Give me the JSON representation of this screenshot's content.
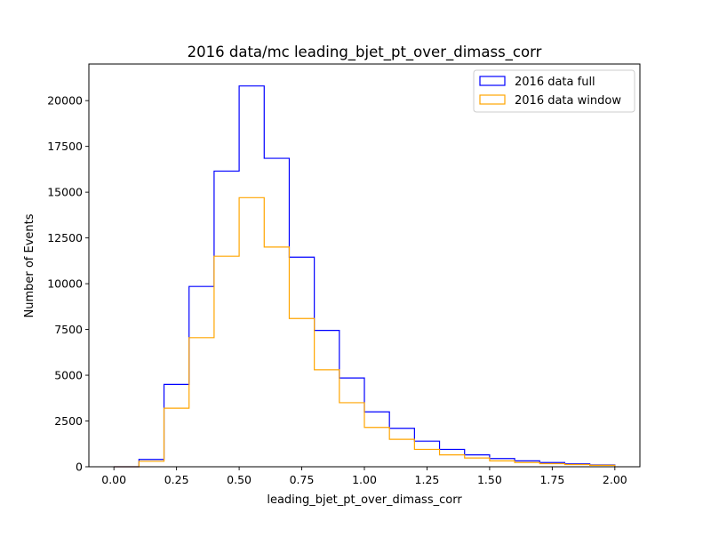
{
  "chart_data": {
    "type": "histogram",
    "title": "2016 data/mc leading_bjet_pt_over_dimass_corr",
    "xlabel": "leading_bjet_pt_over_dimass_corr",
    "ylabel": "Number of Events",
    "xlim": [
      -0.1,
      2.1
    ],
    "ylim": [
      0,
      22000
    ],
    "xticks": [
      0.0,
      0.25,
      0.5,
      0.75,
      1.0,
      1.25,
      1.5,
      1.75,
      2.0
    ],
    "xtick_labels": [
      "0.00",
      "0.25",
      "0.50",
      "0.75",
      "1.00",
      "1.25",
      "1.50",
      "1.75",
      "2.00"
    ],
    "yticks": [
      0,
      2500,
      5000,
      7500,
      10000,
      12500,
      15000,
      17500,
      20000
    ],
    "ytick_labels": [
      "0",
      "2500",
      "5000",
      "7500",
      "10000",
      "12500",
      "15000",
      "17500",
      "20000"
    ],
    "bin_edges": [
      0.0,
      0.1,
      0.2,
      0.3,
      0.4,
      0.5,
      0.6,
      0.7,
      0.8,
      0.9,
      1.0,
      1.1,
      1.2,
      1.3,
      1.4,
      1.5,
      1.6,
      1.7,
      1.8,
      1.9,
      2.0
    ],
    "grid": false,
    "legend_position": "top-right",
    "series": [
      {
        "name": "2016 data full",
        "color": "#0000ff",
        "values": [
          0,
          400,
          4500,
          9850,
          16150,
          20800,
          16850,
          11450,
          7450,
          4850,
          3000,
          2100,
          1400,
          950,
          650,
          450,
          320,
          230,
          160,
          100
        ]
      },
      {
        "name": "2016 data window",
        "color": "#ffa500",
        "values": [
          0,
          300,
          3200,
          7050,
          11500,
          14700,
          12000,
          8100,
          5300,
          3500,
          2150,
          1500,
          950,
          650,
          480,
          320,
          230,
          170,
          120,
          80
        ]
      }
    ]
  }
}
